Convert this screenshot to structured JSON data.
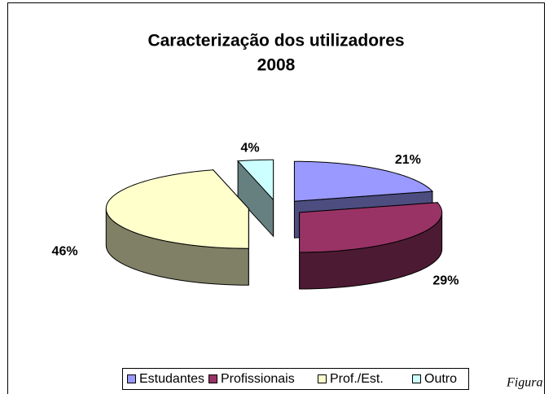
{
  "chart_data": {
    "type": "pie",
    "title": "Caracterização dos utilizadores",
    "subtitle": "2008",
    "categories": [
      "Estudantes",
      "Profissionais",
      "Prof./Est.",
      "Outro"
    ],
    "values": [
      21,
      29,
      46,
      4
    ],
    "value_labels": [
      "21%",
      "29%",
      "46%",
      "4%"
    ],
    "colors": [
      "#9999ff",
      "#993366",
      "#ffffcc",
      "#ccffff"
    ],
    "legend": "bottom",
    "annotation": "Figura"
  }
}
